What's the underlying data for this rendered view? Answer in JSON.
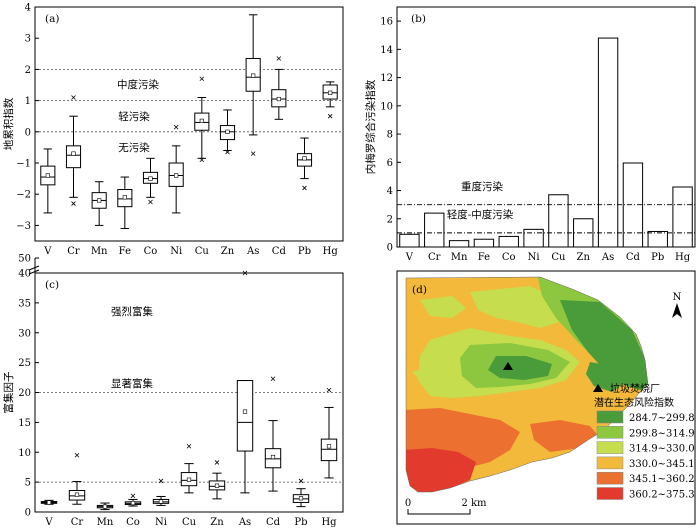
{
  "chart_data": [
    {
      "panel": "(a)",
      "type": "box",
      "ylabel": "地累积指数",
      "ylim": [
        -3.5,
        4
      ],
      "yticks": [
        -3,
        -2,
        -1,
        0,
        1,
        2,
        3,
        4
      ],
      "categories": [
        "V",
        "Cr",
        "Mn",
        "Fe",
        "Co",
        "Ni",
        "Cu",
        "Zn",
        "As",
        "Cd",
        "Pb",
        "Hg"
      ],
      "boxes": [
        {
          "wlo": -2.6,
          "q1": -1.7,
          "med": -1.45,
          "q3": -1.1,
          "whi": -0.55,
          "mean": -1.4,
          "out": []
        },
        {
          "wlo": -2.1,
          "q1": -1.15,
          "med": -0.75,
          "q3": -0.45,
          "whi": 0.5,
          "mean": -0.7,
          "out": [
            1.1,
            -2.3
          ]
        },
        {
          "wlo": -3.0,
          "q1": -2.45,
          "med": -2.2,
          "q3": -1.95,
          "whi": -1.6,
          "mean": -2.2,
          "out": []
        },
        {
          "wlo": -3.1,
          "q1": -2.4,
          "med": -2.15,
          "q3": -1.85,
          "whi": -1.45,
          "mean": -2.1,
          "out": []
        },
        {
          "wlo": -2.1,
          "q1": -1.65,
          "med": -1.5,
          "q3": -1.3,
          "whi": -0.85,
          "mean": -1.5,
          "out": [
            -2.25
          ]
        },
        {
          "wlo": -2.6,
          "q1": -1.75,
          "med": -1.4,
          "q3": -1.0,
          "whi": -0.45,
          "mean": -1.4,
          "out": [
            0.15
          ]
        },
        {
          "wlo": -0.85,
          "q1": 0.05,
          "med": 0.3,
          "q3": 0.6,
          "whi": 1.1,
          "mean": 0.35,
          "out": [
            1.7,
            -0.9
          ]
        },
        {
          "wlo": -0.6,
          "q1": -0.25,
          "med": 0.0,
          "q3": 0.2,
          "whi": 0.7,
          "mean": 0.0,
          "out": [
            -0.65
          ]
        },
        {
          "wlo": -0.1,
          "q1": 1.3,
          "med": 1.75,
          "q3": 2.35,
          "whi": 3.75,
          "mean": 1.8,
          "out": [
            -0.7
          ]
        },
        {
          "wlo": 0.4,
          "q1": 0.8,
          "med": 1.05,
          "q3": 1.35,
          "whi": 2.0,
          "mean": 1.05,
          "out": [
            2.35
          ]
        },
        {
          "wlo": -1.5,
          "q1": -1.1,
          "med": -0.9,
          "q3": -0.7,
          "whi": -0.2,
          "mean": -0.85,
          "out": [
            -1.8
          ]
        },
        {
          "wlo": 0.8,
          "q1": 1.05,
          "med": 1.25,
          "q3": 1.5,
          "whi": 1.6,
          "mean": 1.25,
          "out": [
            0.5
          ]
        }
      ],
      "reference_lines": [
        2,
        1,
        0
      ],
      "zone_labels": [
        "中度污染",
        "轻污染",
        "无污染"
      ]
    },
    {
      "panel": "(b)",
      "type": "bar",
      "ylabel": "内梅罗综合污染指数",
      "ylim": [
        0,
        17
      ],
      "yticks": [
        0,
        2,
        4,
        6,
        8,
        10,
        12,
        14,
        16
      ],
      "categories": [
        "V",
        "Cr",
        "Mn",
        "Fe",
        "Co",
        "Ni",
        "Cu",
        "Zn",
        "As",
        "Cd",
        "Pb",
        "Hg"
      ],
      "values": [
        0.9,
        2.4,
        0.45,
        0.55,
        0.75,
        1.25,
        3.7,
        2.0,
        14.8,
        5.95,
        1.1,
        4.25
      ],
      "reference_lines": [
        3,
        1
      ],
      "zone_labels": [
        "重度污染",
        "轻度-中度污染"
      ]
    },
    {
      "panel": "(c)",
      "type": "box",
      "ylabel": "富集因子",
      "broken_axis": true,
      "ylim": [
        0,
        40
      ],
      "yticks": [
        0,
        5,
        10,
        15,
        20,
        25,
        30,
        35,
        40
      ],
      "top_tick": 50,
      "categories": [
        "V",
        "Cr",
        "Mn",
        "Co",
        "Ni",
        "Cu",
        "Zn",
        "As",
        "Cd",
        "Pb",
        "Hg"
      ],
      "boxes": [
        {
          "wlo": 1.3,
          "q1": 1.45,
          "med": 1.6,
          "q3": 1.75,
          "whi": 1.95,
          "mean": 1.6,
          "out": []
        },
        {
          "wlo": 1.3,
          "q1": 2.0,
          "med": 2.7,
          "q3": 3.6,
          "whi": 5.1,
          "mean": 2.9,
          "out": [
            9.5
          ]
        },
        {
          "wlo": 0.4,
          "q1": 0.7,
          "med": 0.9,
          "q3": 1.1,
          "whi": 1.5,
          "mean": 0.9,
          "out": []
        },
        {
          "wlo": 1.0,
          "q1": 1.25,
          "med": 1.45,
          "q3": 1.7,
          "whi": 2.1,
          "mean": 1.5,
          "out": [
            2.7
          ]
        },
        {
          "wlo": 1.1,
          "q1": 1.45,
          "med": 1.7,
          "q3": 2.1,
          "whi": 2.6,
          "mean": 1.75,
          "out": [
            5.2
          ]
        },
        {
          "wlo": 3.2,
          "q1": 4.4,
          "med": 5.3,
          "q3": 6.6,
          "whi": 8.1,
          "mean": 5.4,
          "out": [
            11.0
          ]
        },
        {
          "wlo": 2.2,
          "q1": 3.7,
          "med": 4.3,
          "q3": 5.2,
          "whi": 6.5,
          "mean": 4.4,
          "out": [
            8.3
          ]
        },
        {
          "wlo": 3.2,
          "q1": 10.2,
          "med": 15.0,
          "q3": 22.0,
          "whi": 22.0,
          "mean": 16.8,
          "out": [
            40.0
          ]
        },
        {
          "wlo": 3.5,
          "q1": 7.4,
          "med": 8.9,
          "q3": 10.6,
          "whi": 15.3,
          "mean": 9.2,
          "out": [
            22.3
          ]
        },
        {
          "wlo": 0.9,
          "q1": 1.6,
          "med": 2.2,
          "q3": 2.9,
          "whi": 3.9,
          "mean": 2.3,
          "out": [
            5.2
          ]
        },
        {
          "wlo": 5.7,
          "q1": 8.6,
          "med": 10.5,
          "q3": 12.2,
          "whi": 17.5,
          "mean": 11.0,
          "out": [
            20.4
          ]
        }
      ],
      "reference_lines": [
        20,
        5
      ],
      "zone_labels": [
        "强烈富集",
        "显著富集"
      ]
    },
    {
      "panel": "(d)",
      "type": "map",
      "marker_label": "垃圾焚烧厂",
      "legend_title": "潜在生态风险指数",
      "legend": [
        {
          "label": "284.7~299.8",
          "color": "#4a9b3a"
        },
        {
          "label": "299.8~314.9",
          "color": "#8dc63f"
        },
        {
          "label": "314.9~330.0",
          "color": "#c6dd4e"
        },
        {
          "label": "330.0~345.1",
          "color": "#f2b93b"
        },
        {
          "label": "345.1~360.2",
          "color": "#ec7030"
        },
        {
          "label": "360.2~375.3",
          "color": "#e23a2c"
        }
      ],
      "north_label": "N",
      "scale_labels": [
        "0",
        "2 km"
      ]
    }
  ]
}
